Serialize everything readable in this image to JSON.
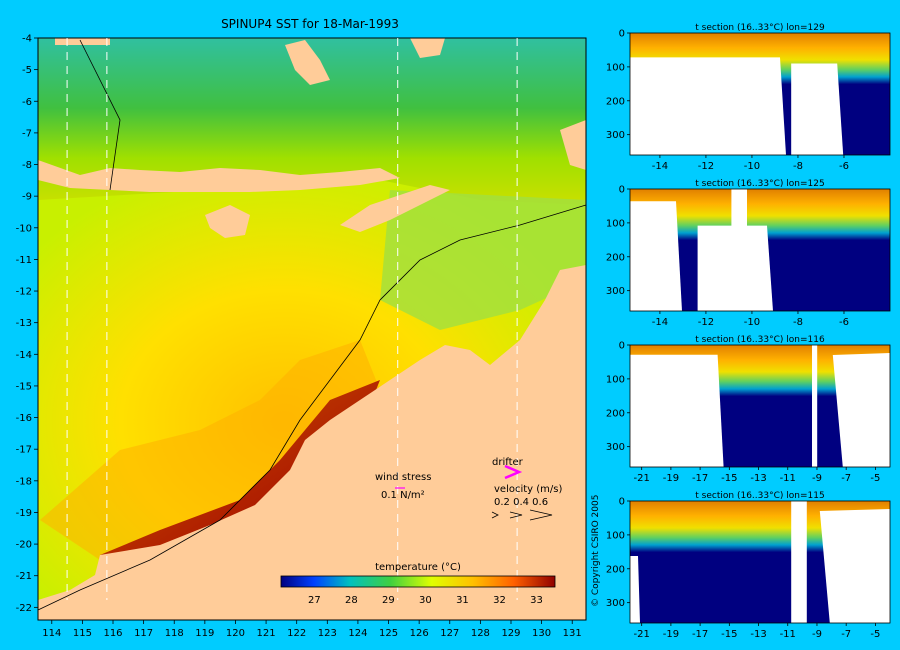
{
  "map": {
    "title": "SPINUP4 SST for 18-Mar-1993",
    "lon_ticks": [
      "114",
      "115",
      "116",
      "117",
      "118",
      "119",
      "120",
      "121",
      "122",
      "123",
      "124",
      "125",
      "126",
      "127",
      "128",
      "129",
      "130",
      "131"
    ],
    "lat_ticks": [
      "-4",
      "-5",
      "-6",
      "-7",
      "-8",
      "-9",
      "-10",
      "-11",
      "-12",
      "-13",
      "-14",
      "-15",
      "-16",
      "-17",
      "-18",
      "-19",
      "-20",
      "-21",
      "-22"
    ],
    "section_lons": [
      114.5,
      115.8,
      125.3,
      129.2
    ],
    "wind_label": "wind stress",
    "wind_scale": "0.1 N/m²",
    "drifter_label": "drifter",
    "velocity_label": "velocity (m/s)",
    "velocity_scale": "0.2 0.4 0.6",
    "colorbar_title": "temperature (°C)",
    "colorbar_ticks": [
      "27",
      "28",
      "29",
      "30",
      "31",
      "32",
      "33"
    ],
    "colors": {
      "background": "#00ccff",
      "land": "#ffcc99",
      "drifter": "#ff00ff",
      "wind": "#ff00ff",
      "deep": "#000080"
    }
  },
  "sections": [
    {
      "title": "t section (16..33°C) lon=129",
      "depth_ticks": [
        "0",
        "100",
        "200",
        "300"
      ],
      "x_ticks": [
        "-14",
        "-12",
        "-10",
        "-8",
        "-6"
      ]
    },
    {
      "title": "t section (16..33°C) lon=125",
      "depth_ticks": [
        "0",
        "100",
        "200",
        "300"
      ],
      "x_ticks": [
        "-14",
        "-12",
        "-10",
        "-8",
        "-6"
      ]
    },
    {
      "title": "t section (16..33°C) lon=116",
      "depth_ticks": [
        "0",
        "100",
        "200",
        "300"
      ],
      "x_ticks": [
        "-21",
        "-19",
        "-17",
        "-15",
        "-13",
        "-11",
        "-9",
        "-7",
        "-5"
      ]
    },
    {
      "title": "t section (16..33°C) lon=115",
      "depth_ticks": [
        "0",
        "100",
        "200",
        "300"
      ],
      "x_ticks": [
        "-21",
        "-19",
        "-17",
        "-15",
        "-13",
        "-11",
        "-9",
        "-7",
        "-5"
      ]
    }
  ],
  "copyright": "© Copyright CSIRO 2005"
}
